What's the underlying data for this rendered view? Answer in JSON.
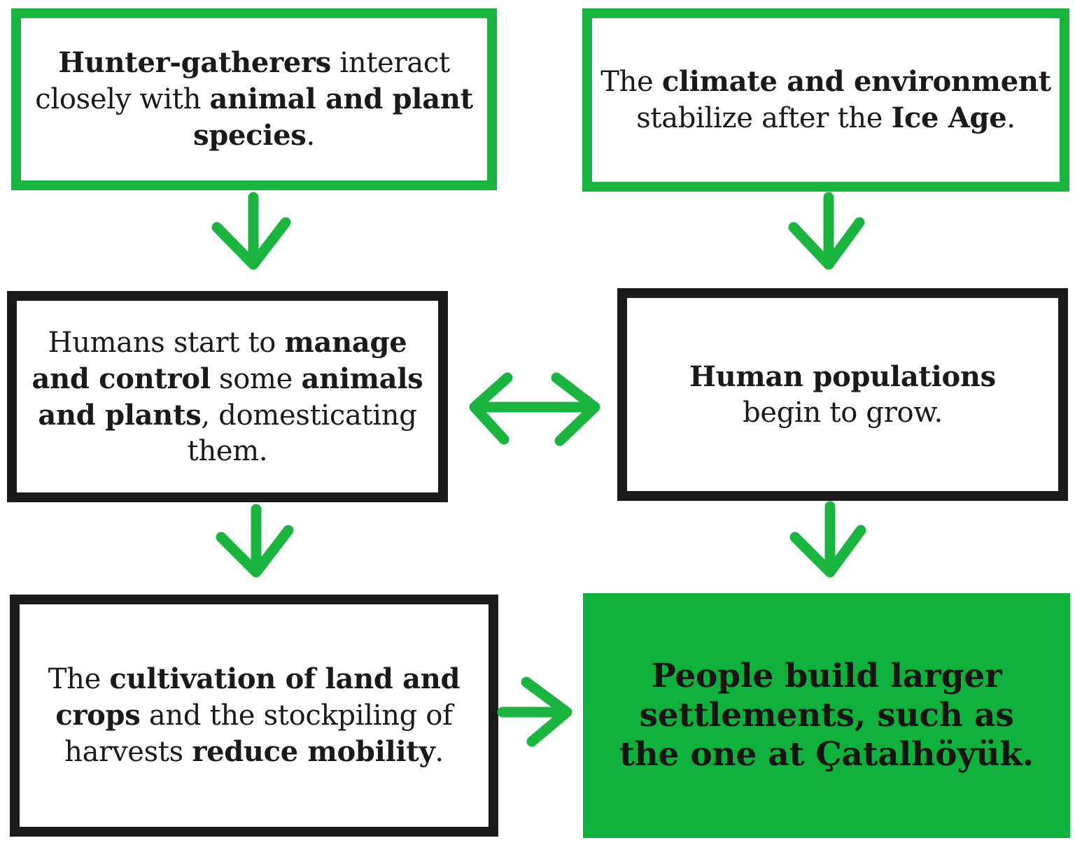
{
  "boxes": {
    "b1": [
      "Hunter-gatherers",
      " interact closely with ",
      "animal and plant species",
      "."
    ],
    "b2": [
      "The ",
      "climate and environment",
      " stabilize after the ",
      "Ice Age",
      "."
    ],
    "b3": [
      "Humans start to ",
      "manage and control",
      " some ",
      "animals and plants",
      ", domesticating them."
    ],
    "b4": [
      "Human populations",
      " begin to grow."
    ],
    "b5": [
      "The ",
      "cultivation of land and crops",
      " and the stockpiling of harvests ",
      "reduce mobility",
      "."
    ],
    "b6": "People build larger settlements, such as the one at Çatalhöyük."
  },
  "colors": {
    "green": "#19b53f",
    "green_fill": "#0fb13d",
    "black": "#1a1a1a"
  },
  "arrows": [
    {
      "from": "b1",
      "to": "b3",
      "icon": "arrow-down-icon"
    },
    {
      "from": "b2",
      "to": "b4",
      "icon": "arrow-down-icon"
    },
    {
      "from": "b3",
      "to": "b4",
      "icon": "arrow-bidirectional-icon"
    },
    {
      "from": "b3",
      "to": "b5",
      "icon": "arrow-down-icon"
    },
    {
      "from": "b4",
      "to": "b6",
      "icon": "arrow-down-icon"
    },
    {
      "from": "b5",
      "to": "b6",
      "icon": "arrow-right-icon"
    }
  ]
}
